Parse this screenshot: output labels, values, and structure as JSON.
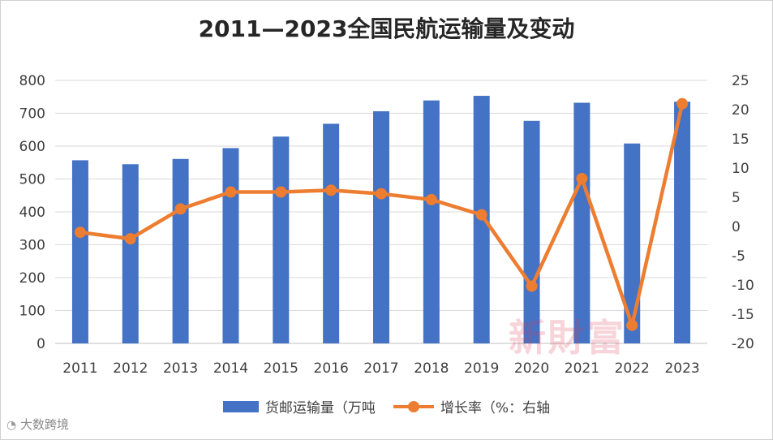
{
  "chart_data": {
    "type": "bar+line",
    "title": "2011—2023全国民航运输量及变动",
    "categories": [
      "2011",
      "2012",
      "2013",
      "2014",
      "2015",
      "2016",
      "2017",
      "2018",
      "2019",
      "2020",
      "2021",
      "2022",
      "2023"
    ],
    "series": [
      {
        "name": "货邮运输量（万吨",
        "type": "bar",
        "axis": "left",
        "color": "#4472c4",
        "values": [
          557,
          545,
          561,
          594,
          629,
          668,
          706,
          739,
          753,
          677,
          732,
          608,
          735
        ]
      },
      {
        "name": "增长率（%：右轴",
        "type": "line",
        "axis": "right",
        "color": "#ed7d31",
        "values": [
          -1.0,
          -2.1,
          3.0,
          5.9,
          5.9,
          6.2,
          5.6,
          4.6,
          2.0,
          -10.2,
          8.2,
          -16.9,
          21.0
        ]
      }
    ],
    "y_left": {
      "min": 0,
      "max": 800,
      "ticks": [
        0,
        100,
        200,
        300,
        400,
        500,
        600,
        700,
        800
      ]
    },
    "y_right": {
      "min": -20,
      "max": 25,
      "ticks": [
        -20,
        -15,
        -10,
        -5,
        0,
        5,
        10,
        15,
        20,
        25
      ]
    },
    "grid": true,
    "legend_position": "bottom"
  },
  "watermarks": {
    "center": "新財富",
    "brand": "大数跨境"
  }
}
